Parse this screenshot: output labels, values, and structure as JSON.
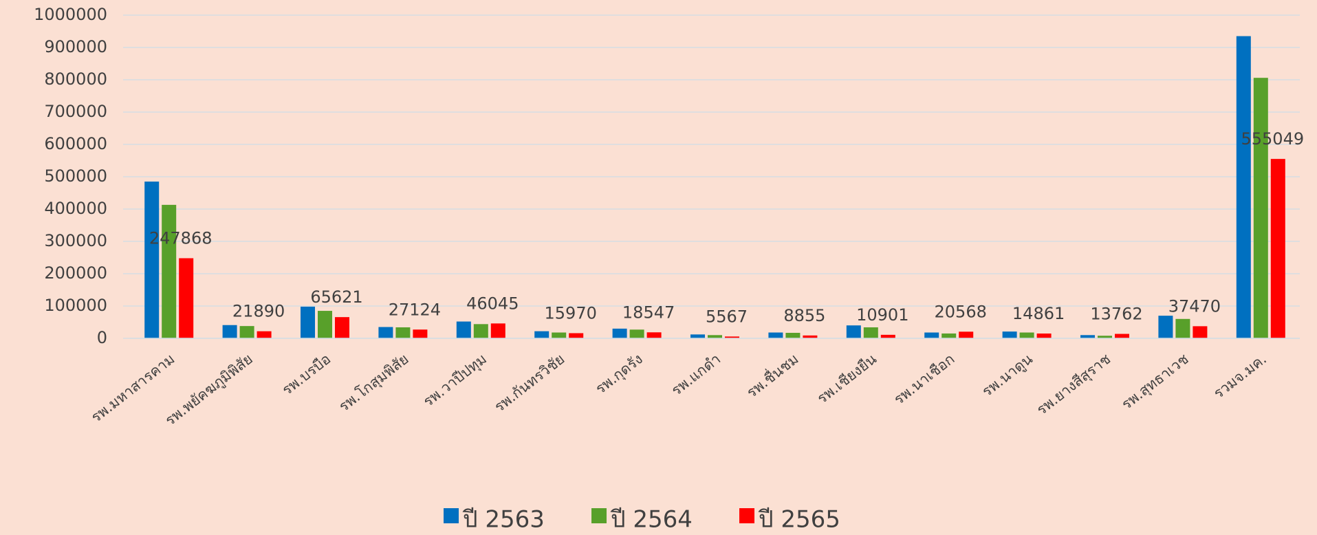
{
  "chart_data": {
    "type": "bar",
    "categories": [
      "รพ.มหาสารคาม",
      "รพ.พยัคฆภูมิพิสัย",
      "รพ.บรบือ",
      "รพ.โกสุมพิสัย",
      "รพ.วาปีปทุม",
      "รพ.กันทรวิชัย",
      "รพ.กุดรัง",
      "รพ.แกดำ",
      "รพ.ชื่นชม",
      "รพ.เชียงยืน",
      "รพ.นาเชือก",
      "รพ.นาดูน",
      "รพ.ยางสีสุราช",
      "รพ.สุทธาเวช",
      "รวมจ.มค."
    ],
    "series": [
      {
        "name": "ปี 2563",
        "color": "#0070c0",
        "values": [
          485000,
          41000,
          98000,
          35000,
          52000,
          22000,
          30000,
          12000,
          18000,
          40000,
          18000,
          21000,
          10000,
          70000,
          935000
        ]
      },
      {
        "name": "ปี 2564",
        "color": "#58a02a",
        "values": [
          413000,
          38000,
          85000,
          34000,
          44000,
          18000,
          27000,
          10000,
          17000,
          34000,
          15000,
          18000,
          8000,
          60000,
          806000
        ]
      },
      {
        "name": "ปี 2565",
        "color": "#ff0000",
        "values": [
          247868,
          21890,
          65621,
          27124,
          46045,
          15970,
          18547,
          5567,
          8855,
          10901,
          20568,
          14861,
          13762,
          37470,
          555049
        ]
      }
    ],
    "data_labels_series": 2,
    "ylim": [
      0,
      1000000
    ],
    "yticks": [
      0,
      100000,
      200000,
      300000,
      400000,
      500000,
      600000,
      700000,
      800000,
      900000,
      1000000
    ],
    "grid": true,
    "legend": "bottom"
  }
}
